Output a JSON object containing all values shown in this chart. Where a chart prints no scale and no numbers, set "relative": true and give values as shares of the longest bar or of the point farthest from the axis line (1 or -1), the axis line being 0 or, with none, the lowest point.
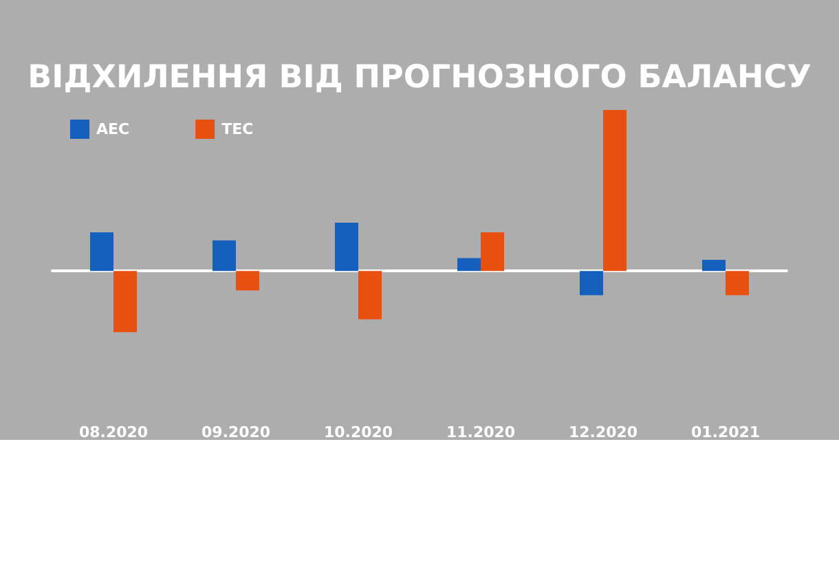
{
  "chart_data": {
    "type": "bar",
    "title": "ВІДХИЛЕННЯ ВІД ПРОГНОЗНОГО БАЛАНСУ",
    "relative": true,
    "categories": [
      "08.2020",
      "09.2020",
      "10.2020",
      "11.2020",
      "12.2020",
      "01.2021"
    ],
    "series": [
      {
        "name": "АЕС",
        "color": "#1560bd",
        "values": [
          0.24,
          0.19,
          0.3,
          0.08,
          -0.15,
          0.07
        ]
      },
      {
        "name": "ТЕС",
        "color": "#e8500f",
        "values": [
          -0.38,
          -0.12,
          -0.3,
          0.24,
          1,
          -0.15
        ]
      }
    ],
    "legend": "top left",
    "grid": false
  }
}
